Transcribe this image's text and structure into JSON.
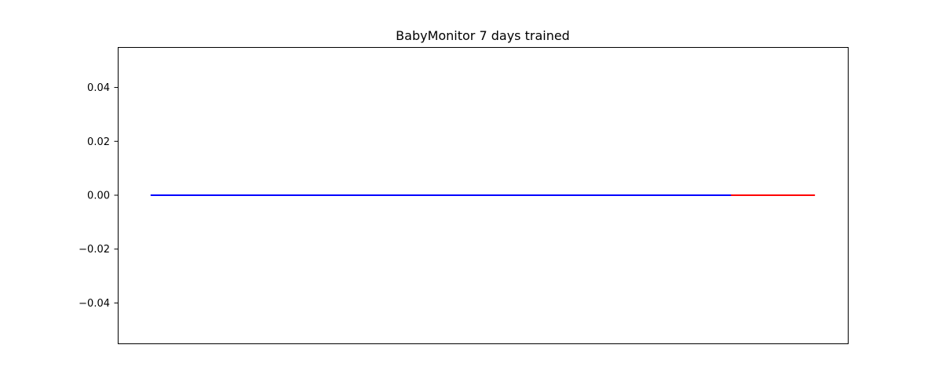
{
  "chart_data": {
    "type": "line",
    "title": "BabyMonitor 7 days trained",
    "xlabel": "",
    "ylabel": "",
    "xlim": [
      0,
      1
    ],
    "ylim": [
      -0.055,
      0.055
    ],
    "x_ticks_visible": false,
    "y_ticks": [
      {
        "value": 0.04,
        "label": "0.04"
      },
      {
        "value": 0.02,
        "label": "0.02"
      },
      {
        "value": 0.0,
        "label": "0.00"
      },
      {
        "value": -0.02,
        "label": "−0.02"
      },
      {
        "value": -0.04,
        "label": "−0.04"
      }
    ],
    "grid": false,
    "legend": "none",
    "series": [
      {
        "color": "#0000ff",
        "x": [
          0.045,
          0.875
        ],
        "values": [
          0,
          0
        ]
      },
      {
        "color": "#ff0000",
        "x": [
          0.84,
          0.955
        ],
        "values": [
          0,
          0
        ]
      }
    ]
  }
}
